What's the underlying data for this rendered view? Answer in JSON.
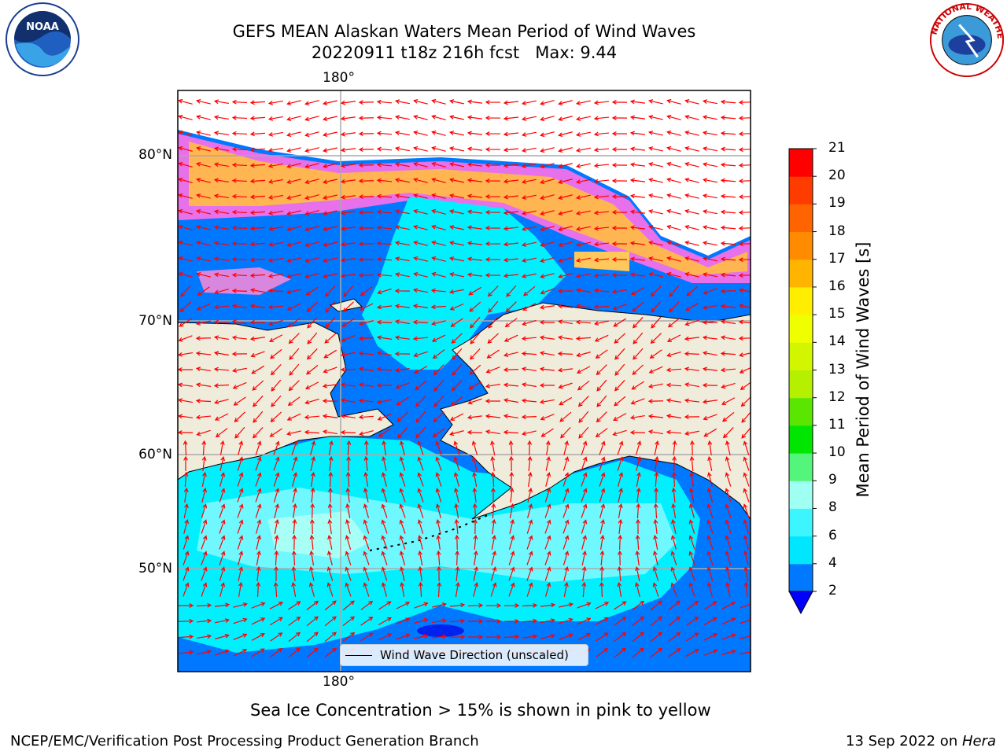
{
  "title": {
    "line1": "GEFS MEAN Alaskan Waters Mean Period of Wind Waves",
    "line2": "20220911 t18z 216h fcst   Max: 9.44"
  },
  "axes": {
    "lon_label_top": "180°",
    "lon_label_bottom": "180°",
    "lat_labels": [
      "80°N",
      "70°N",
      "60°N",
      "50°N"
    ]
  },
  "legend": {
    "label": "Wind Wave Direction (unscaled)"
  },
  "colorbar": {
    "label": "Mean Period of Wind Waves [s]",
    "ticks": [
      "2",
      "4",
      "6",
      "8",
      "9",
      "10",
      "11",
      "12",
      "13",
      "14",
      "15",
      "16",
      "17",
      "18",
      "19",
      "20",
      "21"
    ],
    "colors": [
      "#0078ff",
      "#00e6ff",
      "#3cf5ff",
      "#9ffff2",
      "#53f57a",
      "#00e600",
      "#5ae600",
      "#b4f000",
      "#d2f500",
      "#f0ff00",
      "#ffee00",
      "#ffb400",
      "#ff8c00",
      "#ff6400",
      "#ff3c00",
      "#ff0000"
    ],
    "extend_min_color": "#0000ff"
  },
  "footer": {
    "note": "Sea Ice Concentration > 15% is shown in pink to yellow",
    "credit_left": "NCEP/EMC/Verification Post Processing Product Generation Branch",
    "credit_right_date": "13 Sep 2022 on ",
    "credit_right_machine": "Hera"
  },
  "logos": {
    "left": "NOAA",
    "right": "NATIONAL WEATHER SERVICE"
  },
  "map_colors": {
    "land": "#efecdc",
    "ocean_deep": "#0078ff",
    "ocean_cyan": "#00f0ff",
    "ocean_light": "#55f7ff",
    "ice_pink": "#ff6ee6",
    "ice_orange": "#ffb432",
    "ice_yellow": "#ffd84a",
    "arrow": "#ff0000"
  }
}
